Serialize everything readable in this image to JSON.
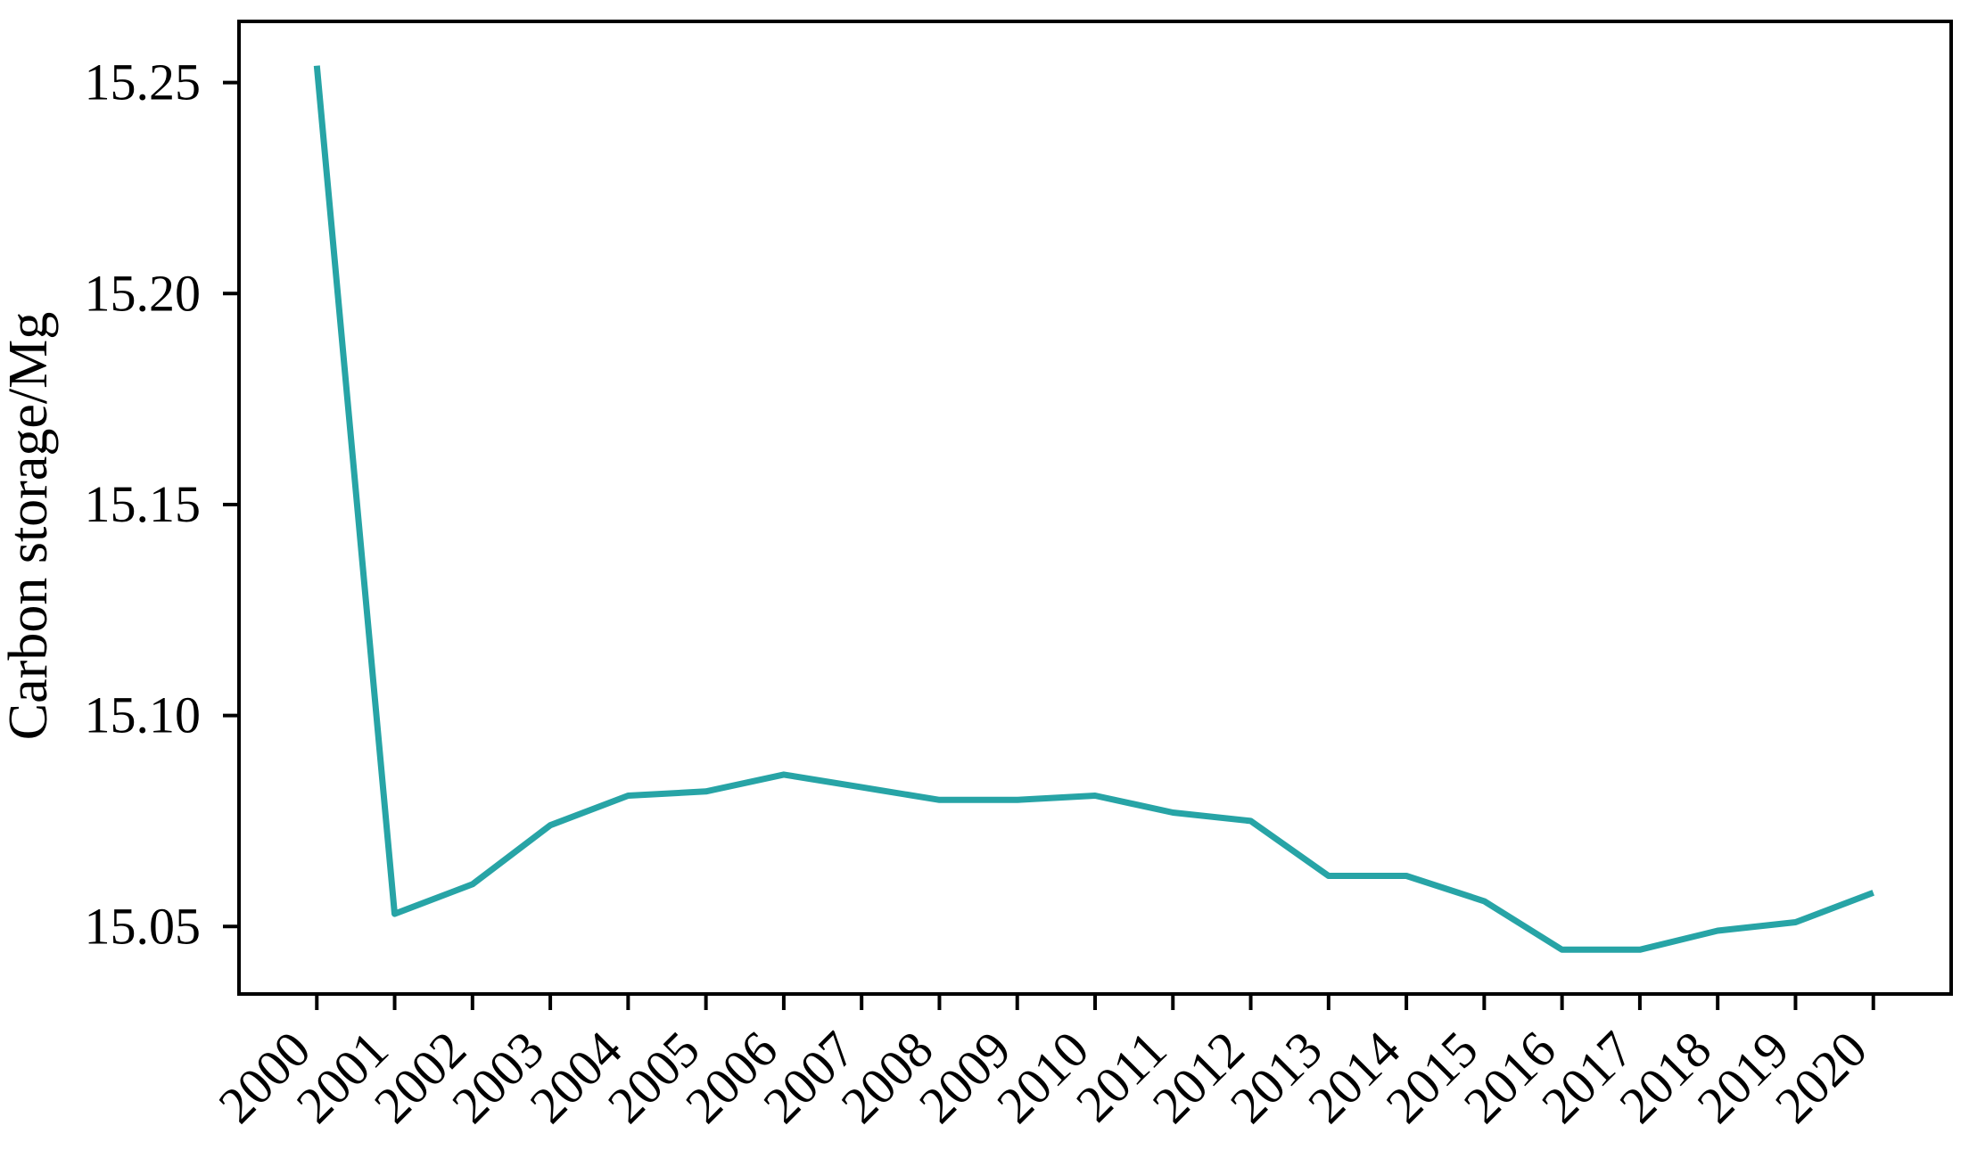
{
  "chart_data": {
    "type": "line",
    "title": "",
    "xlabel": "",
    "ylabel": "Carbon storage/Mg",
    "categories": [
      "2000",
      "2001",
      "2002",
      "2003",
      "2004",
      "2005",
      "2006",
      "2007",
      "2008",
      "2009",
      "2010",
      "2011",
      "2012",
      "2013",
      "2014",
      "2015",
      "2016",
      "2017",
      "2018",
      "2019",
      "2020"
    ],
    "series": [
      {
        "color": "#27a4a6",
        "values": [
          15.254,
          15.053,
          15.06,
          15.074,
          15.081,
          15.082,
          15.086,
          15.083,
          15.08,
          15.08,
          15.081,
          15.077,
          15.075,
          15.062,
          15.062,
          15.056,
          15.0445,
          15.0445,
          15.049,
          15.051,
          15.058
        ]
      }
    ],
    "yticks": [
      15.05,
      15.1,
      15.15,
      15.2,
      15.25
    ],
    "ytick_labels": [
      "15.05",
      "15.10",
      "15.15",
      "15.20",
      "15.25"
    ],
    "ylim": [
      15.034,
      15.2645
    ],
    "x_category_padding": 1,
    "grid": false,
    "legend": null,
    "axis_color": "#000000",
    "background": "#ffffff"
  }
}
